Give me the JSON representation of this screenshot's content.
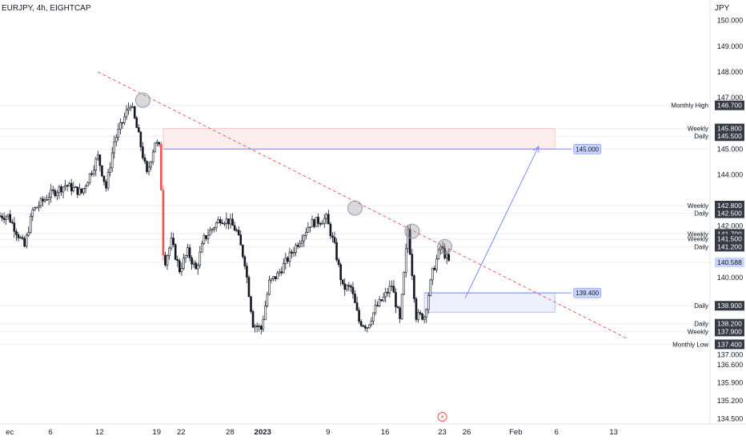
{
  "header": {
    "symbol": "EURJPY, 4h, EIGHTCAP",
    "currency": "JPY"
  },
  "colors": {
    "up": "#131722",
    "down": "#131722",
    "accent": "#ef5350",
    "trendline": "#f06060",
    "zone": "#f8c7c7",
    "zoneBlue": "#b7c4f2",
    "projection": "#7c8ff0",
    "tagBlue": "#c9d4fb",
    "tagDark": "#363a45"
  },
  "chart_data": {
    "type": "candlestick",
    "title": "EURJPY, 4h, EIGHTCAP",
    "ylabel": "JPY",
    "ylim": [
      134.3,
      150.8
    ],
    "xlim": [
      -1,
      86
    ],
    "y_ticks": [
      "150.000",
      "149.000",
      "148.000",
      "147.000",
      "146.000",
      "145.000",
      "144.000",
      "143.000",
      "142.000",
      "141.000",
      "140.000",
      "139.000",
      "138.000",
      "137.000",
      "136.600",
      "135.900",
      "135.200",
      "134.500"
    ],
    "y_tick_values": [
      150,
      149,
      148,
      147,
      146,
      145,
      144,
      143,
      142,
      141,
      140,
      139,
      138,
      137,
      136.6,
      135.9,
      135.2,
      134.5
    ],
    "x_labels": [
      {
        "label": "ec",
        "day": 0,
        "bold": false
      },
      {
        "label": "6",
        "day": 5,
        "bold": false
      },
      {
        "label": "12",
        "day": 11,
        "bold": false
      },
      {
        "label": "19",
        "day": 18,
        "bold": false
      },
      {
        "label": "22",
        "day": 21,
        "bold": false
      },
      {
        "label": "28",
        "day": 27,
        "bold": false
      },
      {
        "label": "2023",
        "day": 31,
        "bold": true
      },
      {
        "label": "9",
        "day": 39,
        "bold": false
      },
      {
        "label": "16",
        "day": 46,
        "bold": false
      },
      {
        "label": "23",
        "day": 53,
        "bold": false
      },
      {
        "label": "26",
        "day": 56,
        "bold": false
      },
      {
        "label": "Feb",
        "day": 62,
        "bold": false
      },
      {
        "label": "6",
        "day": 67,
        "bold": false
      },
      {
        "label": "13",
        "day": 74,
        "bold": false
      }
    ],
    "price_series": {
      "x": [
        0,
        2,
        3,
        5,
        7,
        9,
        11,
        12,
        13,
        15,
        16,
        17,
        18,
        18.6,
        19,
        19.2,
        20,
        21,
        22,
        23,
        24,
        26,
        27,
        28,
        29,
        30,
        31,
        32,
        33,
        35,
        37,
        38,
        39,
        40,
        41,
        42,
        43,
        44,
        45,
        46,
        47,
        48,
        49,
        50,
        51,
        52,
        53,
        54
      ],
      "y": [
        142.4,
        141.2,
        142.6,
        143.2,
        143.6,
        143.3,
        144.7,
        143.5,
        145.3,
        146.8,
        145.5,
        144.0,
        145.3,
        145.0,
        141.0,
        140.6,
        141.4,
        140.3,
        141.0,
        140.3,
        141.5,
        142.3,
        142.2,
        141.8,
        140.6,
        138.2,
        138.0,
        139.8,
        140.1,
        141.1,
        142.1,
        142.2,
        142.3,
        141.2,
        139.6,
        139.6,
        138.3,
        138.1,
        138.8,
        139.2,
        139.7,
        138.3,
        141.9,
        138.5,
        138.5,
        140.2,
        141.2,
        140.6
      ]
    },
    "annotations": [
      {
        "label": "Monthly High",
        "price": 146.7
      },
      {
        "label": "Weekly",
        "price": 145.8
      },
      {
        "label": "Daily",
        "price": 145.5
      },
      {
        "label": "Weekly",
        "price": 142.8
      },
      {
        "label": "Daily",
        "price": 142.5
      },
      {
        "label": "Weekly",
        "price": 141.7
      },
      {
        "label": "Weekly",
        "price": 141.5
      },
      {
        "label": "Daily",
        "price": 141.2
      },
      {
        "label": "Daily",
        "price": 138.9
      },
      {
        "label": "Daily",
        "price": 138.2
      },
      {
        "label": "Weekly",
        "price": 137.9
      },
      {
        "label": "Monthly Low",
        "price": 137.4
      }
    ],
    "price_tags": [
      {
        "value": "146.700",
        "price": 146.7,
        "style": "dark"
      },
      {
        "value": "145.800",
        "price": 145.8,
        "style": "dark"
      },
      {
        "value": "145.500",
        "price": 145.5,
        "style": "dark"
      },
      {
        "value": "145.000",
        "price": 145.0,
        "style": "plain"
      },
      {
        "value": "142.800",
        "price": 142.8,
        "style": "dark"
      },
      {
        "value": "142.500",
        "price": 142.5,
        "style": "dark"
      },
      {
        "value": "141.700",
        "price": 141.7,
        "style": "dark"
      },
      {
        "value": "141.500",
        "price": 141.5,
        "style": "dark"
      },
      {
        "value": "141.200",
        "price": 141.2,
        "style": "dark"
      },
      {
        "value": "140.588",
        "price": 140.588,
        "style": "blue"
      },
      {
        "value": "138.900",
        "price": 138.9,
        "style": "dark"
      },
      {
        "value": "138.200",
        "price": 138.2,
        "style": "dark"
      },
      {
        "value": "137.900",
        "price": 137.9,
        "style": "dark"
      },
      {
        "value": "137.400",
        "price": 137.4,
        "style": "dark"
      }
    ],
    "trendline": {
      "from": {
        "day": 11,
        "price": 148.0
      },
      "to": {
        "day": 76,
        "price": 137.6
      }
    },
    "touch_points": [
      {
        "day": 16.5,
        "price": 146.9
      },
      {
        "day": 42.5,
        "price": 142.7
      },
      {
        "day": 49.5,
        "price": 141.8
      },
      {
        "day": 53.5,
        "price": 141.2
      }
    ],
    "zones": [
      {
        "name": "supply",
        "day_from": 19,
        "day_to": 67,
        "price_top": 145.8,
        "price_bottom": 145.0,
        "color": "red"
      },
      {
        "name": "demand",
        "day_from": 51,
        "day_to": 67,
        "price_top": 139.4,
        "price_bottom": 138.65,
        "color": "blue"
      }
    ],
    "levels": [
      {
        "label": "145.000",
        "price": 145.0,
        "day_from": 19,
        "day_to": 69
      },
      {
        "label": "139.400",
        "price": 139.4,
        "day_from": 51,
        "day_to": 69
      }
    ],
    "projection": {
      "from": {
        "day": 56,
        "price": 139.2
      },
      "to": {
        "day": 65,
        "price": 145.1
      }
    }
  }
}
